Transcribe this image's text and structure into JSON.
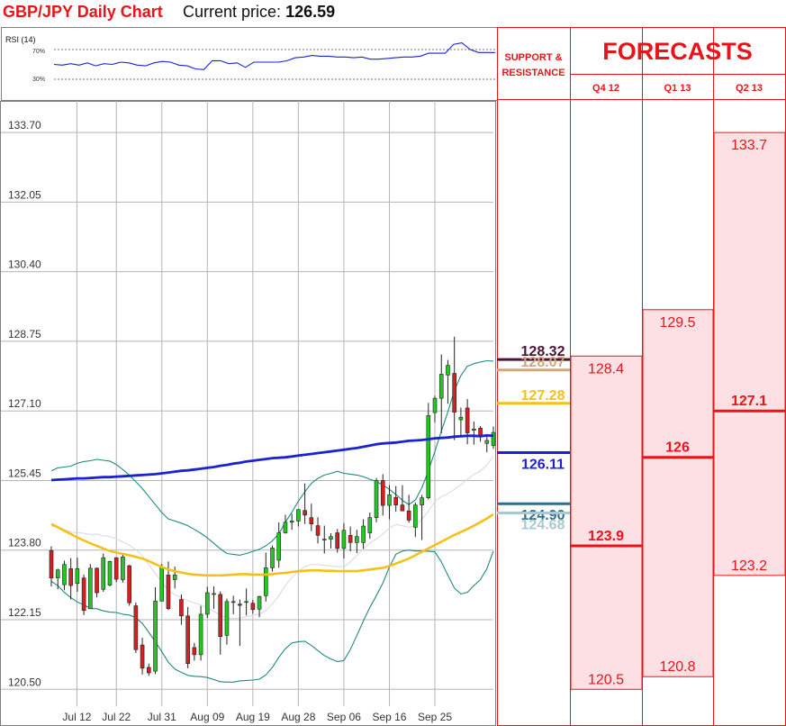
{
  "header": {
    "title": "GBP/JPY Daily Chart",
    "price_label": "Current price:",
    "price_value": "126.59"
  },
  "rsi": {
    "label": "RSI (14)",
    "level_high": "70%",
    "level_low": "30%",
    "values": [
      50,
      49,
      51,
      49,
      52,
      48,
      51,
      50,
      53,
      52,
      49,
      48,
      52,
      54,
      53,
      49,
      48,
      44,
      43,
      55,
      55,
      51,
      52,
      46,
      53,
      53,
      53,
      53,
      55,
      59,
      60,
      62,
      61,
      61,
      60,
      60,
      59,
      60,
      57,
      57,
      58,
      59,
      60,
      60,
      61,
      65,
      65,
      65,
      77,
      79,
      70,
      66,
      66,
      66
    ]
  },
  "chart_data": {
    "type": "candlestick",
    "title": "GBP/JPY Daily Chart",
    "y_ticks": [
      "133.70",
      "132.05",
      "130.40",
      "128.75",
      "127.10",
      "125.45",
      "123.80",
      "122.15",
      "120.50"
    ],
    "ylim": [
      120.5,
      133.7
    ],
    "x_ticks": [
      "Jul 12",
      "Jul 22",
      "Jul 31",
      "Aug 09",
      "Aug 19",
      "Aug 28",
      "Sep 06",
      "Sep 16",
      "Sep 25"
    ],
    "grid": true,
    "candles": [
      {
        "o": 123.79,
        "h": 123.89,
        "l": 122.94,
        "c": 123.14
      },
      {
        "o": 123.14,
        "h": 123.36,
        "l": 122.87,
        "c": 123.33
      },
      {
        "o": 122.98,
        "h": 123.55,
        "l": 122.85,
        "c": 123.46
      },
      {
        "o": 123.36,
        "h": 123.61,
        "l": 122.63,
        "c": 122.96
      },
      {
        "o": 123.01,
        "h": 123.62,
        "l": 122.81,
        "c": 123.36
      },
      {
        "o": 123.14,
        "h": 123.22,
        "l": 122.26,
        "c": 122.37
      },
      {
        "o": 122.41,
        "h": 123.47,
        "l": 122.41,
        "c": 123.37
      },
      {
        "o": 123.37,
        "h": 123.39,
        "l": 122.68,
        "c": 122.79
      },
      {
        "o": 122.87,
        "h": 123.72,
        "l": 122.81,
        "c": 123.62
      },
      {
        "o": 122.97,
        "h": 123.55,
        "l": 122.94,
        "c": 123.53
      },
      {
        "o": 123.62,
        "h": 123.63,
        "l": 123.04,
        "c": 123.11
      },
      {
        "o": 123.1,
        "h": 123.7,
        "l": 123.03,
        "c": 123.64
      },
      {
        "o": 123.43,
        "h": 123.45,
        "l": 122.48,
        "c": 122.55
      },
      {
        "o": 122.48,
        "h": 122.56,
        "l": 121.36,
        "c": 121.44
      },
      {
        "o": 121.55,
        "h": 121.72,
        "l": 120.85,
        "c": 121.0
      },
      {
        "o": 121.02,
        "h": 121.11,
        "l": 120.82,
        "c": 120.89
      },
      {
        "o": 120.93,
        "h": 122.92,
        "l": 120.86,
        "c": 122.59
      },
      {
        "o": 122.59,
        "h": 123.47,
        "l": 122.59,
        "c": 123.4
      },
      {
        "o": 123.21,
        "h": 123.53,
        "l": 122.38,
        "c": 122.41
      },
      {
        "o": 123.1,
        "h": 123.41,
        "l": 122.89,
        "c": 123.21
      },
      {
        "o": 122.63,
        "h": 122.75,
        "l": 122.03,
        "c": 122.24
      },
      {
        "o": 122.24,
        "h": 122.45,
        "l": 121.0,
        "c": 121.11
      },
      {
        "o": 121.49,
        "h": 121.6,
        "l": 121.18,
        "c": 121.32
      },
      {
        "o": 121.32,
        "h": 122.48,
        "l": 121.18,
        "c": 122.28
      },
      {
        "o": 122.28,
        "h": 122.93,
        "l": 122.19,
        "c": 122.79
      },
      {
        "o": 122.77,
        "h": 122.94,
        "l": 122.41,
        "c": 122.77
      },
      {
        "o": 122.75,
        "h": 122.82,
        "l": 121.32,
        "c": 121.75
      },
      {
        "o": 121.78,
        "h": 122.65,
        "l": 121.56,
        "c": 122.58
      },
      {
        "o": 122.56,
        "h": 122.72,
        "l": 122.28,
        "c": 122.58
      },
      {
        "o": 122.52,
        "h": 122.63,
        "l": 121.53,
        "c": 122.49
      },
      {
        "o": 122.58,
        "h": 122.89,
        "l": 122.25,
        "c": 122.58
      },
      {
        "o": 122.54,
        "h": 122.62,
        "l": 122.29,
        "c": 122.39
      },
      {
        "o": 122.4,
        "h": 122.72,
        "l": 122.21,
        "c": 122.7
      },
      {
        "o": 122.72,
        "h": 123.74,
        "l": 122.58,
        "c": 123.38
      },
      {
        "o": 123.38,
        "h": 123.91,
        "l": 123.29,
        "c": 123.85
      },
      {
        "o": 123.56,
        "h": 124.46,
        "l": 123.38,
        "c": 124.21
      },
      {
        "o": 124.21,
        "h": 124.64,
        "l": 124.19,
        "c": 124.46
      },
      {
        "o": 124.46,
        "h": 124.66,
        "l": 124.28,
        "c": 124.49
      },
      {
        "o": 124.49,
        "h": 124.77,
        "l": 124.36,
        "c": 124.76
      },
      {
        "o": 124.74,
        "h": 125.38,
        "l": 124.42,
        "c": 124.63
      },
      {
        "o": 124.57,
        "h": 124.9,
        "l": 124.25,
        "c": 124.42
      },
      {
        "o": 124.38,
        "h": 124.58,
        "l": 123.96,
        "c": 124.15
      },
      {
        "o": 124.04,
        "h": 124.38,
        "l": 123.72,
        "c": 124.06
      },
      {
        "o": 124.06,
        "h": 124.2,
        "l": 123.84,
        "c": 124.12
      },
      {
        "o": 124.21,
        "h": 124.3,
        "l": 123.74,
        "c": 123.84
      },
      {
        "o": 123.84,
        "h": 124.44,
        "l": 123.6,
        "c": 124.27
      },
      {
        "o": 124.15,
        "h": 124.36,
        "l": 123.77,
        "c": 123.98
      },
      {
        "o": 123.98,
        "h": 124.28,
        "l": 123.73,
        "c": 124.12
      },
      {
        "o": 123.98,
        "h": 124.53,
        "l": 123.83,
        "c": 124.37
      },
      {
        "o": 124.21,
        "h": 124.69,
        "l": 124.07,
        "c": 124.57
      },
      {
        "o": 124.57,
        "h": 125.51,
        "l": 124.46,
        "c": 125.45
      },
      {
        "o": 125.45,
        "h": 125.6,
        "l": 124.62,
        "c": 124.86
      },
      {
        "o": 124.86,
        "h": 125.34,
        "l": 124.53,
        "c": 125.11
      },
      {
        "o": 125.05,
        "h": 125.32,
        "l": 124.71,
        "c": 124.87
      },
      {
        "o": 124.87,
        "h": 125.34,
        "l": 124.73,
        "c": 124.73
      },
      {
        "o": 124.73,
        "h": 125.11,
        "l": 124.45,
        "c": 124.51
      },
      {
        "o": 124.34,
        "h": 124.93,
        "l": 124.11,
        "c": 124.87
      },
      {
        "o": 124.87,
        "h": 125.11,
        "l": 124.04,
        "c": 125.04
      },
      {
        "o": 125.04,
        "h": 127.29,
        "l": 125.0,
        "c": 126.99
      },
      {
        "o": 127.06,
        "h": 127.46,
        "l": 126.83,
        "c": 127.4
      },
      {
        "o": 127.4,
        "h": 128.44,
        "l": 126.57,
        "c": 127.97
      },
      {
        "o": 127.95,
        "h": 128.31,
        "l": 127.27,
        "c": 128.18
      },
      {
        "o": 127.99,
        "h": 128.86,
        "l": 126.41,
        "c": 127.07
      },
      {
        "o": 126.89,
        "h": 127.18,
        "l": 126.49,
        "c": 126.95
      },
      {
        "o": 127.17,
        "h": 127.38,
        "l": 126.31,
        "c": 126.58
      },
      {
        "o": 126.64,
        "h": 126.85,
        "l": 126.3,
        "c": 126.67
      },
      {
        "o": 126.69,
        "h": 126.74,
        "l": 126.37,
        "c": 126.51
      },
      {
        "o": 126.33,
        "h": 126.52,
        "l": 126.12,
        "c": 126.4
      },
      {
        "o": 126.28,
        "h": 126.73,
        "l": 126.2,
        "c": 126.59
      }
    ],
    "sma_blue": [
      125.46,
      125.47,
      125.48,
      125.49,
      125.5,
      125.5,
      125.51,
      125.52,
      125.53,
      125.53,
      125.54,
      125.55,
      125.56,
      125.57,
      125.58,
      125.59,
      125.6,
      125.62,
      125.64,
      125.66,
      125.68,
      125.69,
      125.71,
      125.73,
      125.75,
      125.77,
      125.8,
      125.82,
      125.85,
      125.87,
      125.9,
      125.92,
      125.94,
      125.96,
      125.98,
      125.99,
      126.0,
      126.02,
      126.04,
      126.06,
      126.08,
      126.1,
      126.12,
      126.14,
      126.16,
      126.18,
      126.2,
      126.22,
      126.25,
      126.28,
      126.31,
      126.33,
      126.34,
      126.35,
      126.37,
      126.39,
      126.4,
      126.41,
      126.43,
      126.45,
      126.46,
      126.47,
      126.49,
      126.5,
      126.51,
      126.51,
      126.5,
      126.52,
      126.51
    ],
    "sma_yellow": [
      124.42,
      124.34,
      124.26,
      124.18,
      124.1,
      124.03,
      123.96,
      123.9,
      123.84,
      123.78,
      123.74,
      123.71,
      123.68,
      123.64,
      123.6,
      123.54,
      123.47,
      123.4,
      123.34,
      123.3,
      123.27,
      123.24,
      123.22,
      123.21,
      123.2,
      123.2,
      123.2,
      123.21,
      123.22,
      123.23,
      123.23,
      123.22,
      123.22,
      123.22,
      123.23,
      123.25,
      123.26,
      123.28,
      123.3,
      123.31,
      123.32,
      123.32,
      123.31,
      123.31,
      123.3,
      123.3,
      123.3,
      123.3,
      123.32,
      123.34,
      123.36,
      123.38,
      123.42,
      123.48,
      123.54,
      123.6,
      123.68,
      123.76,
      123.84,
      123.92,
      124.0,
      124.08,
      124.16,
      124.23,
      124.3,
      124.38,
      124.46,
      124.55,
      124.65
    ],
    "boll_upper": [
      125.68,
      125.75,
      125.77,
      125.79,
      125.86,
      125.9,
      125.92,
      125.95,
      125.93,
      125.91,
      125.83,
      125.71,
      125.58,
      125.42,
      125.26,
      125.07,
      124.88,
      124.69,
      124.54,
      124.49,
      124.44,
      124.38,
      124.29,
      124.2,
      124.09,
      123.96,
      123.83,
      123.72,
      123.7,
      123.68,
      123.72,
      123.77,
      123.82,
      123.9,
      124.02,
      124.18,
      124.46,
      124.7,
      124.96,
      125.18,
      125.38,
      125.5,
      125.58,
      125.62,
      125.67,
      125.62,
      125.6,
      125.58,
      125.54,
      125.48,
      125.43,
      125.34,
      125.24,
      125.12,
      124.98,
      124.88,
      124.99,
      125.28,
      125.68,
      126.14,
      126.62,
      127.08,
      127.58,
      127.94,
      128.16,
      128.22,
      128.26,
      128.29,
      128.28
    ],
    "boll_lower": [
      123.06,
      122.96,
      122.8,
      122.67,
      122.57,
      122.5,
      122.42,
      122.41,
      122.36,
      122.33,
      122.32,
      122.28,
      122.26,
      122.2,
      122.06,
      121.85,
      121.63,
      121.39,
      121.14,
      120.98,
      120.9,
      120.83,
      120.81,
      120.8,
      120.78,
      120.73,
      120.68,
      120.67,
      120.67,
      120.7,
      120.71,
      120.72,
      120.74,
      120.84,
      121.02,
      121.26,
      121.46,
      121.6,
      121.63,
      121.64,
      121.54,
      121.42,
      121.3,
      121.22,
      121.16,
      121.18,
      121.44,
      121.78,
      122.12,
      122.44,
      122.72,
      123.02,
      123.4,
      123.7,
      123.78,
      123.8,
      123.78,
      123.78,
      123.77,
      123.76,
      123.52,
      123.2,
      122.9,
      122.76,
      122.8,
      122.96,
      123.1,
      123.36,
      123.78
    ],
    "boll_mid": [
      124.37,
      124.35,
      124.29,
      124.23,
      124.21,
      124.2,
      124.17,
      124.18,
      124.14,
      124.12,
      124.07,
      123.99,
      123.92,
      123.81,
      123.66,
      123.46,
      123.25,
      123.04,
      122.84,
      122.74,
      122.67,
      122.6,
      122.55,
      122.5,
      122.43,
      122.35,
      122.26,
      122.2,
      122.18,
      122.19,
      122.22,
      122.25,
      122.28,
      122.37,
      122.52,
      122.72,
      122.96,
      123.15,
      123.3,
      123.41,
      123.46,
      123.46,
      123.44,
      123.42,
      123.41,
      123.4,
      123.52,
      123.68,
      123.83,
      123.96,
      124.07,
      124.18,
      124.32,
      124.41,
      124.38,
      124.34,
      124.38,
      124.53,
      124.72,
      124.95,
      125.07,
      125.14,
      125.24,
      125.35,
      125.48,
      125.59,
      125.68,
      125.82,
      126.03
    ],
    "support_resistance": [
      {
        "label": "128.32",
        "value": 128.32,
        "color": "#4a1436"
      },
      {
        "label": "128.07",
        "value": 128.07,
        "color": "#d2a679"
      },
      {
        "label": "127.28",
        "value": 127.28,
        "color": "#f6c01a"
      },
      {
        "label": "126.11",
        "value": 126.11,
        "color": "#1b23d0"
      },
      {
        "label": "124.90",
        "value": 124.9,
        "color": "#2e6f8e"
      },
      {
        "label": "124.68",
        "value": 124.68,
        "color": "#a9c8d0"
      }
    ],
    "colors": {
      "up": "#22c722",
      "down": "#d42020",
      "sma_blue": "#1b23d0",
      "sma_yellow": "#f6c01a",
      "boll": "#1f8a80",
      "boll_mid": "#d8d8d8",
      "grid": "#b5b5b5",
      "forecast_red": "#e8141a",
      "forecast_fill": "#fde0e3"
    }
  },
  "table": {
    "sr_header": "SUPPORT & RESISTANCE",
    "forecast_title": "FORECASTS",
    "columns": [
      {
        "label": "Q4 12",
        "high": "128.4",
        "mid": "123.9",
        "low": "120.5",
        "high_v": 128.4,
        "mid_v": 123.9,
        "low_v": 120.5
      },
      {
        "label": "Q1 13",
        "high": "129.5",
        "mid": "126",
        "low": "120.8",
        "high_v": 129.5,
        "mid_v": 126.0,
        "low_v": 120.8
      },
      {
        "label": "Q2 13",
        "high": "133.7",
        "mid": "127.1",
        "low": "123.2",
        "high_v": 133.7,
        "mid_v": 127.1,
        "low_v": 123.2
      }
    ]
  }
}
